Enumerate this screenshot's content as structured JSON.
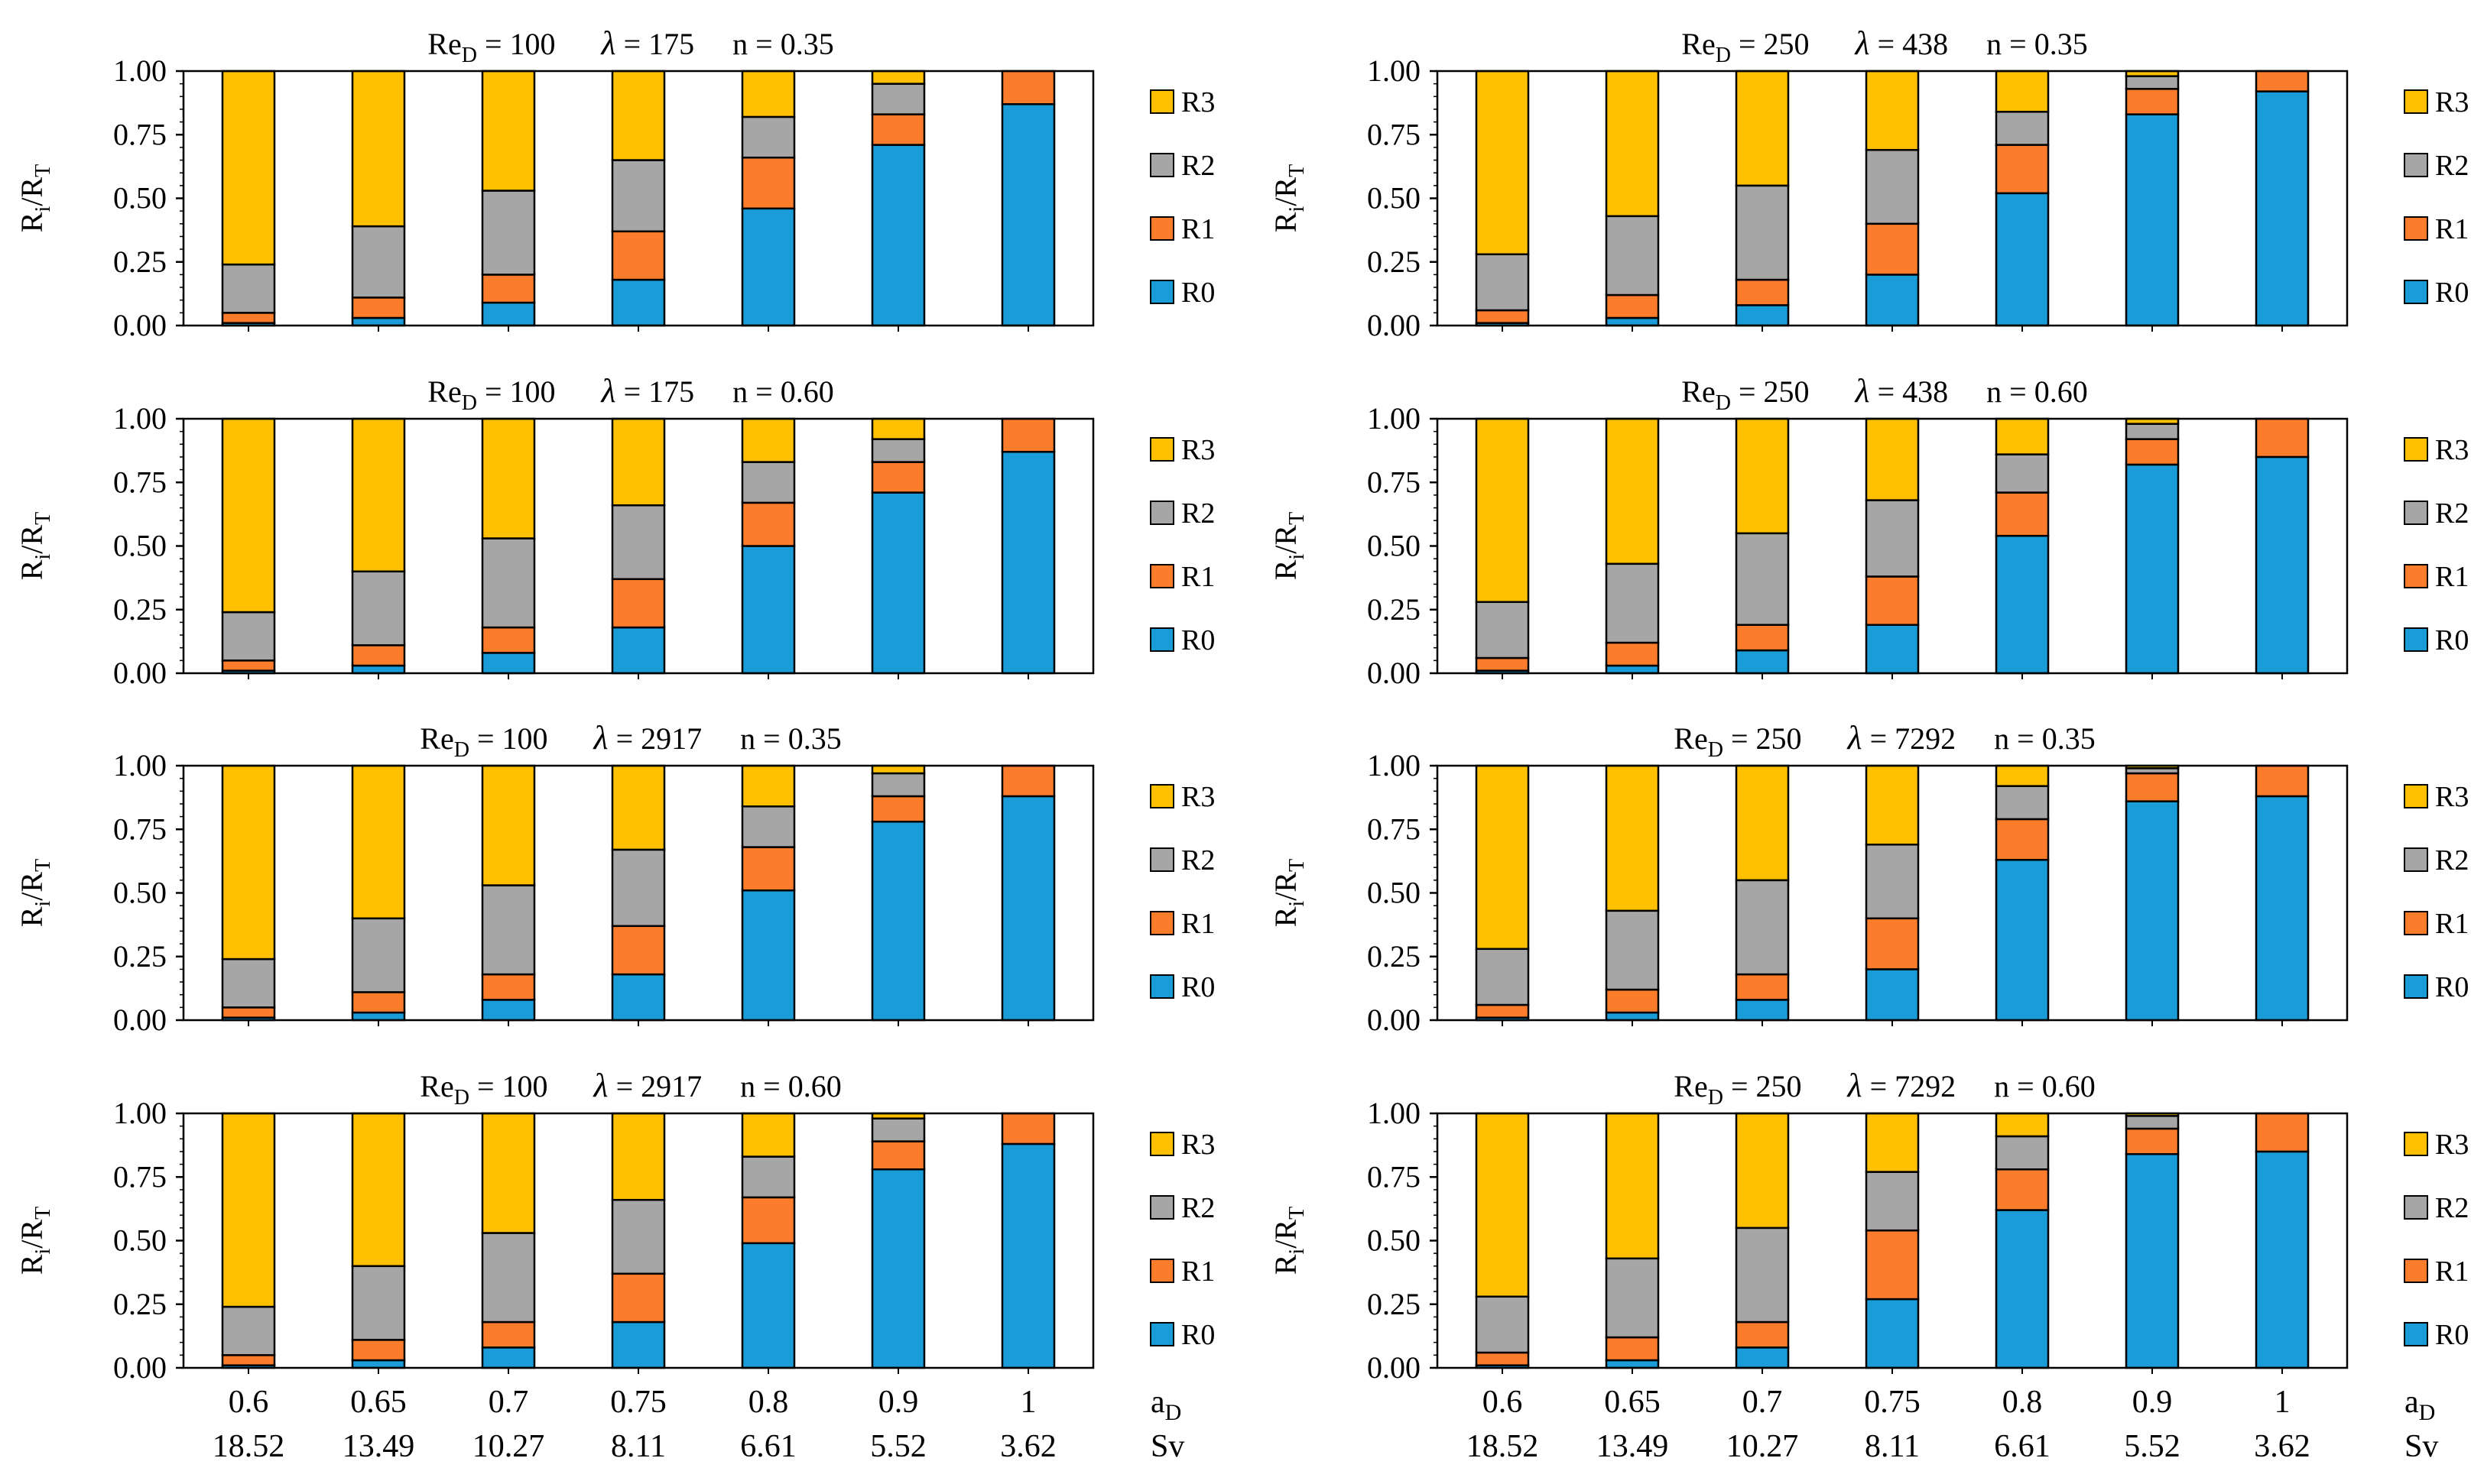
{
  "figure": {
    "x_axis": {
      "ad_symbol": "a",
      "ad_sub": "D",
      "sv_label": "Sv",
      "ad_values": [
        "0.6",
        "0.65",
        "0.7",
        "0.75",
        "0.8",
        "0.9",
        "1"
      ],
      "sv_values": [
        "18.52",
        "13.49",
        "10.27",
        "8.11",
        "6.61",
        "5.52",
        "3.62"
      ]
    },
    "y_axis": {
      "label_main": "R",
      "label_sub_i": "i",
      "label_slash": "/R",
      "label_sub_t": "T",
      "ticks": [
        "0.00",
        "0.25",
        "0.50",
        "0.75",
        "1.00"
      ]
    },
    "legend": [
      {
        "key": "R3",
        "label": "R3"
      },
      {
        "key": "R2",
        "label": "R2"
      },
      {
        "key": "R1",
        "label": "R1"
      },
      {
        "key": "R0",
        "label": "R0"
      }
    ]
  },
  "colors": {
    "R0": "#1a9cd8",
    "R1": "#fb7d2c",
    "R2": "#a6a6a6",
    "R3": "#fec000",
    "frame": "#000000"
  },
  "chart_data": [
    {
      "type": "bar",
      "stacked": true,
      "title": {
        "re": "Re",
        "re_sub": "D",
        "re_val": "= 100",
        "lambda": "λ",
        "lambda_val": "= 175",
        "n": "n = 0.35"
      },
      "categories": [
        "0.6",
        "0.65",
        "0.7",
        "0.75",
        "0.8",
        "0.9",
        "1"
      ],
      "ylim": [
        0,
        1
      ],
      "ylabel": "Ri/RT",
      "xlabel": "aD",
      "series": [
        {
          "name": "R0",
          "values": [
            0.01,
            0.03,
            0.09,
            0.18,
            0.46,
            0.71,
            0.87
          ]
        },
        {
          "name": "R1",
          "values": [
            0.04,
            0.08,
            0.11,
            0.19,
            0.2,
            0.12,
            0.13
          ]
        },
        {
          "name": "R2",
          "values": [
            0.19,
            0.28,
            0.33,
            0.28,
            0.16,
            0.12,
            0.0
          ]
        },
        {
          "name": "R3",
          "values": [
            0.76,
            0.61,
            0.47,
            0.35,
            0.18,
            0.05,
            0.0
          ]
        }
      ]
    },
    {
      "type": "bar",
      "stacked": true,
      "title": {
        "re": "Re",
        "re_sub": "D",
        "re_val": "= 250",
        "lambda": "λ",
        "lambda_val": "= 438",
        "n": "n = 0.35"
      },
      "categories": [
        "0.6",
        "0.65",
        "0.7",
        "0.75",
        "0.8",
        "0.9",
        "1"
      ],
      "ylim": [
        0,
        1
      ],
      "ylabel": "Ri/RT",
      "xlabel": "aD",
      "series": [
        {
          "name": "R0",
          "values": [
            0.01,
            0.03,
            0.08,
            0.2,
            0.52,
            0.83,
            0.92
          ]
        },
        {
          "name": "R1",
          "values": [
            0.05,
            0.09,
            0.1,
            0.2,
            0.19,
            0.1,
            0.08
          ]
        },
        {
          "name": "R2",
          "values": [
            0.22,
            0.31,
            0.37,
            0.29,
            0.13,
            0.05,
            0.0
          ]
        },
        {
          "name": "R3",
          "values": [
            0.72,
            0.57,
            0.45,
            0.31,
            0.16,
            0.02,
            0.0
          ]
        }
      ]
    },
    {
      "type": "bar",
      "stacked": true,
      "title": {
        "re": "Re",
        "re_sub": "D",
        "re_val": "= 100",
        "lambda": "λ",
        "lambda_val": "= 175",
        "n": "n = 0.60"
      },
      "categories": [
        "0.6",
        "0.65",
        "0.7",
        "0.75",
        "0.8",
        "0.9",
        "1"
      ],
      "ylim": [
        0,
        1
      ],
      "ylabel": "Ri/RT",
      "xlabel": "aD",
      "series": [
        {
          "name": "R0",
          "values": [
            0.01,
            0.03,
            0.08,
            0.18,
            0.5,
            0.71,
            0.87
          ]
        },
        {
          "name": "R1",
          "values": [
            0.04,
            0.08,
            0.1,
            0.19,
            0.17,
            0.12,
            0.13
          ]
        },
        {
          "name": "R2",
          "values": [
            0.19,
            0.29,
            0.35,
            0.29,
            0.16,
            0.09,
            0.0
          ]
        },
        {
          "name": "R3",
          "values": [
            0.76,
            0.6,
            0.47,
            0.34,
            0.17,
            0.08,
            0.0
          ]
        }
      ]
    },
    {
      "type": "bar",
      "stacked": true,
      "title": {
        "re": "Re",
        "re_sub": "D",
        "re_val": "= 250",
        "lambda": "λ",
        "lambda_val": "= 438",
        "n": "n = 0.60"
      },
      "categories": [
        "0.6",
        "0.65",
        "0.7",
        "0.75",
        "0.8",
        "0.9",
        "1"
      ],
      "ylim": [
        0,
        1
      ],
      "ylabel": "Ri/RT",
      "xlabel": "aD",
      "series": [
        {
          "name": "R0",
          "values": [
            0.01,
            0.03,
            0.09,
            0.19,
            0.54,
            0.82,
            0.85
          ]
        },
        {
          "name": "R1",
          "values": [
            0.05,
            0.09,
            0.1,
            0.19,
            0.17,
            0.1,
            0.15
          ]
        },
        {
          "name": "R2",
          "values": [
            0.22,
            0.31,
            0.36,
            0.3,
            0.15,
            0.06,
            0.0
          ]
        },
        {
          "name": "R3",
          "values": [
            0.72,
            0.57,
            0.45,
            0.32,
            0.14,
            0.02,
            0.0
          ]
        }
      ]
    },
    {
      "type": "bar",
      "stacked": true,
      "title": {
        "re": "Re",
        "re_sub": "D",
        "re_val": "= 100",
        "lambda": "λ",
        "lambda_val": "= 2917",
        "n": "n = 0.35"
      },
      "categories": [
        "0.6",
        "0.65",
        "0.7",
        "0.75",
        "0.8",
        "0.9",
        "1"
      ],
      "ylim": [
        0,
        1
      ],
      "ylabel": "Ri/RT",
      "xlabel": "aD",
      "series": [
        {
          "name": "R0",
          "values": [
            0.01,
            0.03,
            0.08,
            0.18,
            0.51,
            0.78,
            0.88
          ]
        },
        {
          "name": "R1",
          "values": [
            0.04,
            0.08,
            0.1,
            0.19,
            0.17,
            0.1,
            0.12
          ]
        },
        {
          "name": "R2",
          "values": [
            0.19,
            0.29,
            0.35,
            0.3,
            0.16,
            0.09,
            0.0
          ]
        },
        {
          "name": "R3",
          "values": [
            0.76,
            0.6,
            0.47,
            0.33,
            0.16,
            0.03,
            0.0
          ]
        }
      ]
    },
    {
      "type": "bar",
      "stacked": true,
      "title": {
        "re": "Re",
        "re_sub": "D",
        "re_val": "= 250",
        "lambda": "λ",
        "lambda_val": "= 7292",
        "n": "n = 0.35"
      },
      "categories": [
        "0.6",
        "0.65",
        "0.7",
        "0.75",
        "0.8",
        "0.9",
        "1"
      ],
      "ylim": [
        0,
        1
      ],
      "ylabel": "Ri/RT",
      "xlabel": "aD",
      "series": [
        {
          "name": "R0",
          "values": [
            0.01,
            0.03,
            0.08,
            0.2,
            0.63,
            0.86,
            0.88
          ]
        },
        {
          "name": "R1",
          "values": [
            0.05,
            0.09,
            0.1,
            0.2,
            0.16,
            0.11,
            0.12
          ]
        },
        {
          "name": "R2",
          "values": [
            0.22,
            0.31,
            0.37,
            0.29,
            0.13,
            0.02,
            0.0
          ]
        },
        {
          "name": "R3",
          "values": [
            0.72,
            0.57,
            0.45,
            0.31,
            0.08,
            0.01,
            0.0
          ]
        }
      ]
    },
    {
      "type": "bar",
      "stacked": true,
      "title": {
        "re": "Re",
        "re_sub": "D",
        "re_val": "= 100",
        "lambda": "λ",
        "lambda_val": "= 2917",
        "n": "n = 0.60"
      },
      "categories": [
        "0.6",
        "0.65",
        "0.7",
        "0.75",
        "0.8",
        "0.9",
        "1"
      ],
      "ylim": [
        0,
        1
      ],
      "ylabel": "Ri/RT",
      "xlabel": "aD",
      "series": [
        {
          "name": "R0",
          "values": [
            0.01,
            0.03,
            0.08,
            0.18,
            0.49,
            0.78,
            0.88
          ]
        },
        {
          "name": "R1",
          "values": [
            0.04,
            0.08,
            0.1,
            0.19,
            0.18,
            0.11,
            0.12
          ]
        },
        {
          "name": "R2",
          "values": [
            0.19,
            0.29,
            0.35,
            0.29,
            0.16,
            0.09,
            0.0
          ]
        },
        {
          "name": "R3",
          "values": [
            0.76,
            0.6,
            0.47,
            0.34,
            0.17,
            0.02,
            0.0
          ]
        }
      ]
    },
    {
      "type": "bar",
      "stacked": true,
      "title": {
        "re": "Re",
        "re_sub": "D",
        "re_val": "= 250",
        "lambda": "λ",
        "lambda_val": "= 7292",
        "n": "n = 0.60"
      },
      "categories": [
        "0.6",
        "0.65",
        "0.7",
        "0.75",
        "0.8",
        "0.9",
        "1"
      ],
      "ylim": [
        0,
        1
      ],
      "ylabel": "Ri/RT",
      "xlabel": "aD",
      "series": [
        {
          "name": "R0",
          "values": [
            0.01,
            0.03,
            0.08,
            0.27,
            0.62,
            0.84,
            0.85
          ]
        },
        {
          "name": "R1",
          "values": [
            0.05,
            0.09,
            0.1,
            0.27,
            0.16,
            0.1,
            0.15
          ]
        },
        {
          "name": "R2",
          "values": [
            0.22,
            0.31,
            0.37,
            0.23,
            0.13,
            0.05,
            0.0
          ]
        },
        {
          "name": "R3",
          "values": [
            0.72,
            0.57,
            0.45,
            0.23,
            0.09,
            0.01,
            0.0
          ]
        }
      ]
    }
  ]
}
